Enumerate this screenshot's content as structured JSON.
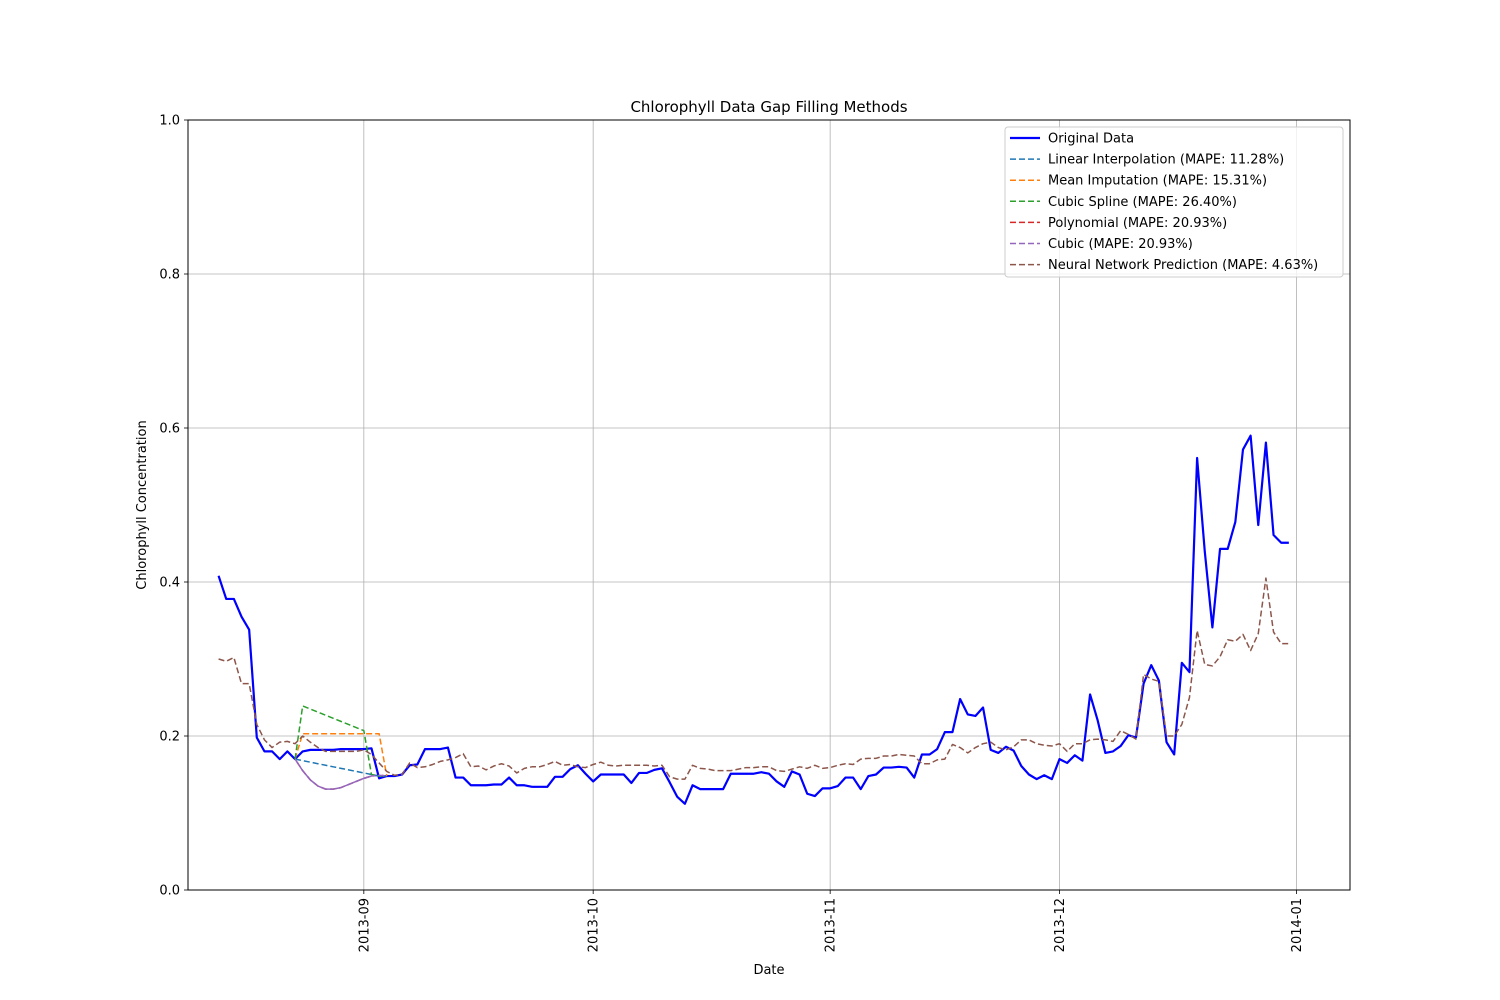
{
  "chart_data": {
    "type": "line",
    "title": "Chlorophyll Data Gap Filling Methods",
    "xlabel": "Date",
    "ylabel": "Chlorophyll Concentration",
    "ylim": [
      0,
      1.0
    ],
    "xlim": [
      "2013-08-09",
      "2014-01-08"
    ],
    "grid": true,
    "legend_position": "upper right",
    "y_ticks": [
      "0.0",
      "0.2",
      "0.4",
      "0.6",
      "0.8",
      "1.0"
    ],
    "x_ticks": [
      {
        "date": "2013-09-01",
        "label": "2013-09"
      },
      {
        "date": "2013-10-01",
        "label": "2013-10"
      },
      {
        "date": "2013-11-01",
        "label": "2013-11"
      },
      {
        "date": "2013-12-01",
        "label": "2013-12"
      },
      {
        "date": "2014-01-01",
        "label": "2014-01"
      }
    ],
    "legend": [
      {
        "name": "Original Data",
        "color": "#0000ff",
        "style": "solid"
      },
      {
        "name": "Linear Interpolation (MAPE: 11.28%)",
        "color": "#1f77b4",
        "style": "dashed"
      },
      {
        "name": "Mean Imputation (MAPE: 15.31%)",
        "color": "#ff7f0e",
        "style": "dashed"
      },
      {
        "name": "Cubic Spline (MAPE: 26.40%)",
        "color": "#2ca02c",
        "style": "dashed"
      },
      {
        "name": "Polynomial (MAPE: 20.93%)",
        "color": "#d62728",
        "style": "dashed"
      },
      {
        "name": "Cubic (MAPE: 20.93%)",
        "color": "#9467bd",
        "style": "dashed"
      },
      {
        "name": "Neural Network Prediction (MAPE: 4.63%)",
        "color": "#8c564b",
        "style": "dashed"
      }
    ],
    "original": {
      "start_date": "2013-08-13",
      "values": [
        0.408,
        0.378,
        0.378,
        0.355,
        0.338,
        0.198,
        0.18,
        0.18,
        0.17,
        0.18,
        0.17,
        0.18,
        0.182,
        0.182,
        0.182,
        0.182,
        0.183,
        0.183,
        0.183,
        0.183,
        0.184,
        0.145,
        0.148,
        0.148,
        0.15,
        0.162,
        0.163,
        0.183,
        0.183,
        0.183,
        0.185,
        0.146,
        0.146,
        0.136,
        0.136,
        0.136,
        0.137,
        0.137,
        0.146,
        0.136,
        0.136,
        0.134,
        0.134,
        0.134,
        0.147,
        0.147,
        0.157,
        0.162,
        0.151,
        0.141,
        0.15,
        0.15,
        0.15,
        0.15,
        0.139,
        0.152,
        0.152,
        0.156,
        0.158,
        0.14,
        0.121,
        0.112,
        0.136,
        0.131,
        0.131,
        0.131,
        0.131,
        0.151,
        0.151,
        0.151,
        0.151,
        0.153,
        0.151,
        0.141,
        0.134,
        0.154,
        0.15,
        0.125,
        0.122,
        0.132,
        0.132,
        0.135,
        0.146,
        0.146,
        0.131,
        0.148,
        0.15,
        0.159,
        0.159,
        0.16,
        0.159,
        0.146,
        0.176,
        0.176,
        0.183,
        0.205,
        0.205,
        0.248,
        0.228,
        0.226,
        0.237,
        0.182,
        0.178,
        0.186,
        0.181,
        0.161,
        0.15,
        0.144,
        0.149,
        0.144,
        0.17,
        0.165,
        0.175,
        0.168,
        0.254,
        0.22,
        0.178,
        0.18,
        0.187,
        0.201,
        0.198,
        0.268,
        0.292,
        0.272,
        0.192,
        0.176,
        0.295,
        0.283,
        0.561,
        0.44,
        0.341,
        0.443,
        0.443,
        0.478,
        0.572,
        0.59,
        0.474,
        0.581,
        0.461,
        0.451,
        0.451
      ]
    },
    "gap": {
      "start_index": 10,
      "end_index": 22
    },
    "gap_fills": {
      "linear": [
        0.17,
        0.168,
        0.166,
        0.164,
        0.162,
        0.16,
        0.158,
        0.156,
        0.154,
        0.152,
        0.15,
        0.148,
        0.148
      ],
      "mean": [
        0.17,
        0.203,
        0.203,
        0.203,
        0.203,
        0.203,
        0.203,
        0.203,
        0.203,
        0.203,
        0.203,
        0.203,
        0.148
      ],
      "cubic_spline": [
        0.17,
        0.239,
        0.235,
        0.231,
        0.227,
        0.223,
        0.219,
        0.215,
        0.211,
        0.207,
        0.15,
        0.148,
        0.148
      ],
      "polynomial_cubic": [
        0.17,
        0.155,
        0.143,
        0.135,
        0.131,
        0.131,
        0.133,
        0.137,
        0.141,
        0.145,
        0.148,
        0.149,
        0.148
      ]
    },
    "neural_network": {
      "start_date": "2013-08-13",
      "values": [
        0.3,
        0.297,
        0.302,
        0.268,
        0.268,
        0.215,
        0.195,
        0.185,
        0.192,
        0.193,
        0.19,
        0.2,
        0.192,
        0.185,
        0.18,
        0.18,
        0.18,
        0.18,
        0.18,
        0.182,
        0.176,
        0.165,
        0.154,
        0.149,
        0.15,
        0.165,
        0.159,
        0.16,
        0.163,
        0.167,
        0.169,
        0.172,
        0.177,
        0.16,
        0.161,
        0.156,
        0.161,
        0.164,
        0.161,
        0.152,
        0.158,
        0.16,
        0.16,
        0.163,
        0.167,
        0.162,
        0.163,
        0.16,
        0.159,
        0.163,
        0.166,
        0.162,
        0.161,
        0.162,
        0.162,
        0.162,
        0.162,
        0.161,
        0.162,
        0.147,
        0.144,
        0.144,
        0.162,
        0.158,
        0.157,
        0.155,
        0.155,
        0.155,
        0.157,
        0.159,
        0.159,
        0.16,
        0.16,
        0.155,
        0.154,
        0.157,
        0.16,
        0.158,
        0.162,
        0.158,
        0.159,
        0.162,
        0.164,
        0.163,
        0.17,
        0.171,
        0.171,
        0.174,
        0.174,
        0.176,
        0.175,
        0.174,
        0.164,
        0.164,
        0.169,
        0.17,
        0.189,
        0.185,
        0.178,
        0.185,
        0.19,
        0.192,
        0.185,
        0.182,
        0.186,
        0.195,
        0.195,
        0.19,
        0.188,
        0.187,
        0.19,
        0.18,
        0.19,
        0.19,
        0.195,
        0.196,
        0.195,
        0.193,
        0.207,
        0.202,
        0.196,
        0.28,
        0.274,
        0.271,
        0.2,
        0.2,
        0.215,
        0.25,
        0.337,
        0.293,
        0.291,
        0.303,
        0.325,
        0.323,
        0.332,
        0.311,
        0.333,
        0.405,
        0.335,
        0.32,
        0.32
      ]
    }
  }
}
